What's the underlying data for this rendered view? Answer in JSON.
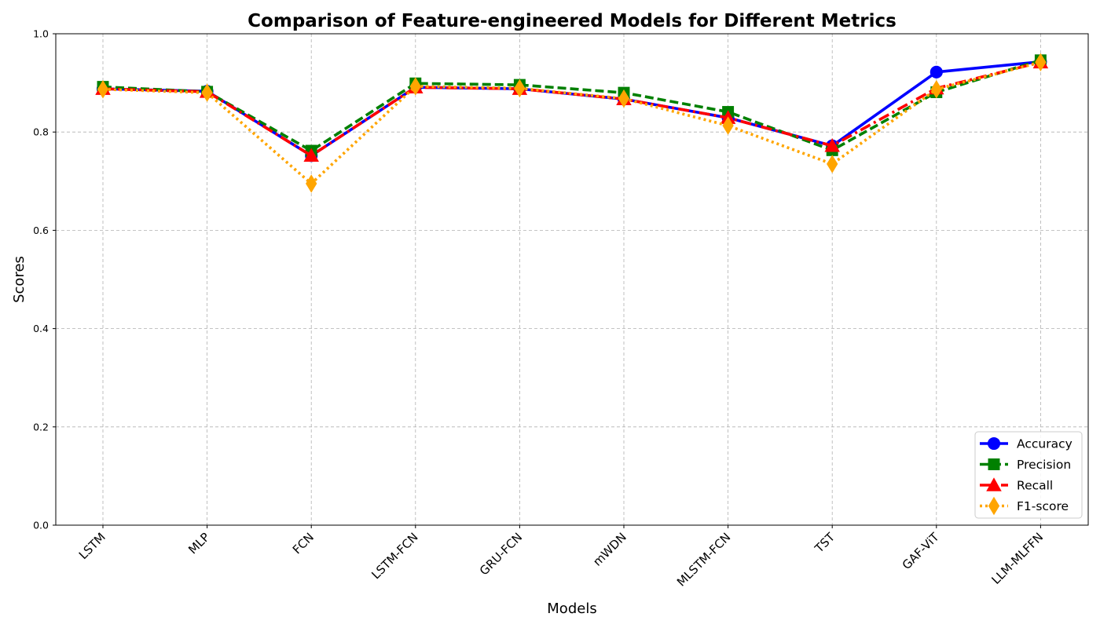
{
  "chart_data": {
    "type": "line",
    "title": "Comparison of Feature-engineered Models for Different Metrics",
    "xlabel": "Models",
    "ylabel": "Scores",
    "ylim": [
      0,
      1.0
    ],
    "yticks": [
      "0.0",
      "0.2",
      "0.4",
      "0.6",
      "0.8",
      "1.0"
    ],
    "grid": true,
    "legend_position": "bottom-right",
    "categories": [
      "LSTM",
      "MLP",
      "FCN",
      "LSTM-FCN",
      "GRU-FCN",
      "mWDN",
      "MLSTM-FCN",
      "TST",
      "GAF-ViT",
      "LLM-MLFFN"
    ],
    "series": [
      {
        "name": "Accuracy",
        "color": "#0000ff",
        "marker": "circle",
        "dash": "solid",
        "values": [
          0.888,
          0.883,
          0.752,
          0.891,
          0.888,
          0.867,
          0.829,
          0.772,
          0.922,
          0.943
        ]
      },
      {
        "name": "Precision",
        "color": "#008000",
        "marker": "square",
        "dash": "dashed",
        "values": [
          0.892,
          0.882,
          0.762,
          0.899,
          0.896,
          0.88,
          0.841,
          0.763,
          0.881,
          0.946
        ]
      },
      {
        "name": "Recall",
        "color": "#ff0000",
        "marker": "triangle",
        "dash": "dashdot",
        "values": [
          0.888,
          0.882,
          0.752,
          0.891,
          0.888,
          0.867,
          0.829,
          0.772,
          0.889,
          0.942
        ]
      },
      {
        "name": "F1-score",
        "color": "#ffa500",
        "marker": "diamond",
        "dash": "dotted",
        "values": [
          0.887,
          0.88,
          0.695,
          0.893,
          0.889,
          0.868,
          0.813,
          0.735,
          0.887,
          0.942
        ]
      }
    ]
  }
}
